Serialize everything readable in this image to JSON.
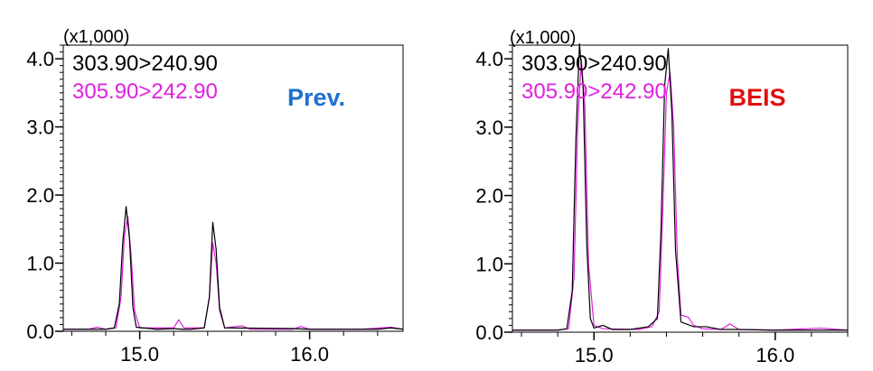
{
  "chart_data": [
    {
      "type": "line",
      "multiplier_label": "(x1,000)",
      "label": "Prev.",
      "label_color": "#1f6fd0",
      "x_range": [
        14.55,
        16.55
      ],
      "y_range": [
        0,
        4.2
      ],
      "x_ticks": [
        15.0,
        16.0
      ],
      "y_ticks": [
        0.0,
        1.0,
        2.0,
        3.0,
        4.0
      ],
      "x_tick_labels": [
        "15.0",
        "16.0"
      ],
      "y_tick_labels": [
        "0.0",
        "1.0",
        "2.0",
        "3.0",
        "4.0"
      ],
      "series": [
        {
          "name": "303.90>240.90",
          "color": "#000000",
          "points": [
            [
              14.55,
              0.03
            ],
            [
              14.8,
              0.03
            ],
            [
              14.85,
              0.05
            ],
            [
              14.88,
              0.4
            ],
            [
              14.9,
              1.3
            ],
            [
              14.92,
              1.83
            ],
            [
              14.94,
              1.35
            ],
            [
              14.96,
              0.35
            ],
            [
              14.98,
              0.06
            ],
            [
              15.1,
              0.03
            ],
            [
              15.2,
              0.04
            ],
            [
              15.25,
              0.03
            ],
            [
              15.3,
              0.03
            ],
            [
              15.38,
              0.05
            ],
            [
              15.41,
              0.5
            ],
            [
              15.43,
              1.6
            ],
            [
              15.45,
              1.2
            ],
            [
              15.47,
              0.35
            ],
            [
              15.5,
              0.05
            ],
            [
              15.9,
              0.04
            ],
            [
              16.0,
              0.03
            ],
            [
              16.4,
              0.03
            ],
            [
              16.48,
              0.05
            ],
            [
              16.55,
              0.03
            ]
          ]
        },
        {
          "name": "305.90>242.90",
          "color": "#e020e0",
          "points": [
            [
              14.55,
              0.03
            ],
            [
              14.7,
              0.03
            ],
            [
              14.75,
              0.06
            ],
            [
              14.8,
              0.03
            ],
            [
              14.86,
              0.05
            ],
            [
              14.89,
              0.5
            ],
            [
              14.91,
              1.4
            ],
            [
              14.93,
              1.68
            ],
            [
              14.95,
              1.1
            ],
            [
              14.97,
              0.3
            ],
            [
              15.0,
              0.05
            ],
            [
              15.2,
              0.05
            ],
            [
              15.23,
              0.17
            ],
            [
              15.26,
              0.05
            ],
            [
              15.38,
              0.05
            ],
            [
              15.41,
              0.5
            ],
            [
              15.43,
              1.3
            ],
            [
              15.45,
              1.0
            ],
            [
              15.47,
              0.3
            ],
            [
              15.5,
              0.05
            ],
            [
              15.6,
              0.08
            ],
            [
              15.65,
              0.03
            ],
            [
              15.9,
              0.03
            ],
            [
              15.95,
              0.07
            ],
            [
              16.0,
              0.03
            ],
            [
              16.3,
              0.03
            ],
            [
              16.48,
              0.06
            ],
            [
              16.55,
              0.03
            ]
          ]
        }
      ]
    },
    {
      "type": "line",
      "multiplier_label": "(x1,000)",
      "label": "BEIS",
      "label_color": "#e01010",
      "x_range": [
        14.55,
        16.4
      ],
      "y_range": [
        0,
        4.2
      ],
      "x_ticks": [
        15.0,
        16.0
      ],
      "y_ticks": [
        0.0,
        1.0,
        2.0,
        3.0,
        4.0
      ],
      "x_tick_labels": [
        "15.0",
        "16.0"
      ],
      "y_tick_labels": [
        "0.0",
        "1.0",
        "2.0",
        "3.0",
        "4.0"
      ],
      "series": [
        {
          "name": "303.90>240.90",
          "color": "#000000",
          "points": [
            [
              14.55,
              0.03
            ],
            [
              14.8,
              0.03
            ],
            [
              14.85,
              0.05
            ],
            [
              14.88,
              0.6
            ],
            [
              14.9,
              2.8
            ],
            [
              14.92,
              4.22
            ],
            [
              14.94,
              3.6
            ],
            [
              14.96,
              1.3
            ],
            [
              14.98,
              0.2
            ],
            [
              15.0,
              0.06
            ],
            [
              15.05,
              0.1
            ],
            [
              15.1,
              0.04
            ],
            [
              15.2,
              0.04
            ],
            [
              15.3,
              0.08
            ],
            [
              15.35,
              0.2
            ],
            [
              15.37,
              1.5
            ],
            [
              15.39,
              3.6
            ],
            [
              15.41,
              4.15
            ],
            [
              15.43,
              3.2
            ],
            [
              15.45,
              1.2
            ],
            [
              15.48,
              0.15
            ],
            [
              15.55,
              0.08
            ],
            [
              15.62,
              0.08
            ],
            [
              15.7,
              0.04
            ],
            [
              15.8,
              0.04
            ],
            [
              16.0,
              0.03
            ],
            [
              16.4,
              0.03
            ]
          ]
        },
        {
          "name": "305.90>242.90",
          "color": "#e020e0",
          "points": [
            [
              14.55,
              0.03
            ],
            [
              14.8,
              0.03
            ],
            [
              14.86,
              0.05
            ],
            [
              14.89,
              0.8
            ],
            [
              14.91,
              3.0
            ],
            [
              14.93,
              4.0
            ],
            [
              14.95,
              3.3
            ],
            [
              14.97,
              1.0
            ],
            [
              15.0,
              0.1
            ],
            [
              15.05,
              0.05
            ],
            [
              15.25,
              0.04
            ],
            [
              15.32,
              0.08
            ],
            [
              15.36,
              0.3
            ],
            [
              15.38,
              1.8
            ],
            [
              15.4,
              3.5
            ],
            [
              15.42,
              3.8
            ],
            [
              15.44,
              3.0
            ],
            [
              15.46,
              1.1
            ],
            [
              15.48,
              0.25
            ],
            [
              15.52,
              0.22
            ],
            [
              15.55,
              0.1
            ],
            [
              15.6,
              0.05
            ],
            [
              15.7,
              0.04
            ],
            [
              15.75,
              0.12
            ],
            [
              15.8,
              0.04
            ],
            [
              16.0,
              0.03
            ],
            [
              16.25,
              0.06
            ],
            [
              16.4,
              0.03
            ]
          ]
        }
      ]
    }
  ]
}
